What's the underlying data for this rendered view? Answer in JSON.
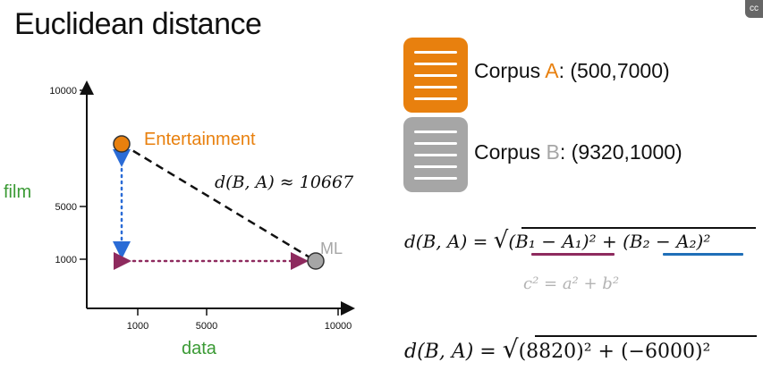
{
  "title": "Euclidean distance",
  "corner_badge_icon": "caption-icon",
  "colors": {
    "orange": "#e8800e",
    "gray": "#a6a6a6",
    "green": "#3a9a34",
    "blue_arrow": "#2a6bd6",
    "purple_arrow": "#8e2a5e",
    "underline_purple": "#8e2a5e",
    "underline_blue": "#1f6fb8"
  },
  "chart": {
    "y_axis_label": "film",
    "x_axis_label": "data",
    "y_ticks": [
      "10000",
      "5000",
      "1000"
    ],
    "x_ticks": [
      "1000",
      "5000",
      "10000"
    ],
    "points": [
      {
        "label": "Entertainment",
        "x": 500,
        "y": 7000
      },
      {
        "label": "ML",
        "x": 9320,
        "y": 1000
      }
    ],
    "distance_label": "d(B, A) ≈ 10667"
  },
  "corpus_a": {
    "prefix": "Corpus ",
    "letter": "A",
    "coords": ": (500,7000)"
  },
  "corpus_b": {
    "prefix": "Corpus ",
    "letter": "B",
    "coords": ": (9320,1000)"
  },
  "formula_general": {
    "lhs": "d(B, A) = ",
    "term1": "(B₁ − A₁)²",
    "plus": " + ",
    "term2": "(B₂ − A₂)²"
  },
  "pythagoras": "c² = a² + b²",
  "formula_numeric": {
    "lhs": "d(B, A) = ",
    "rhs": "(8820)² + (−6000)²"
  }
}
